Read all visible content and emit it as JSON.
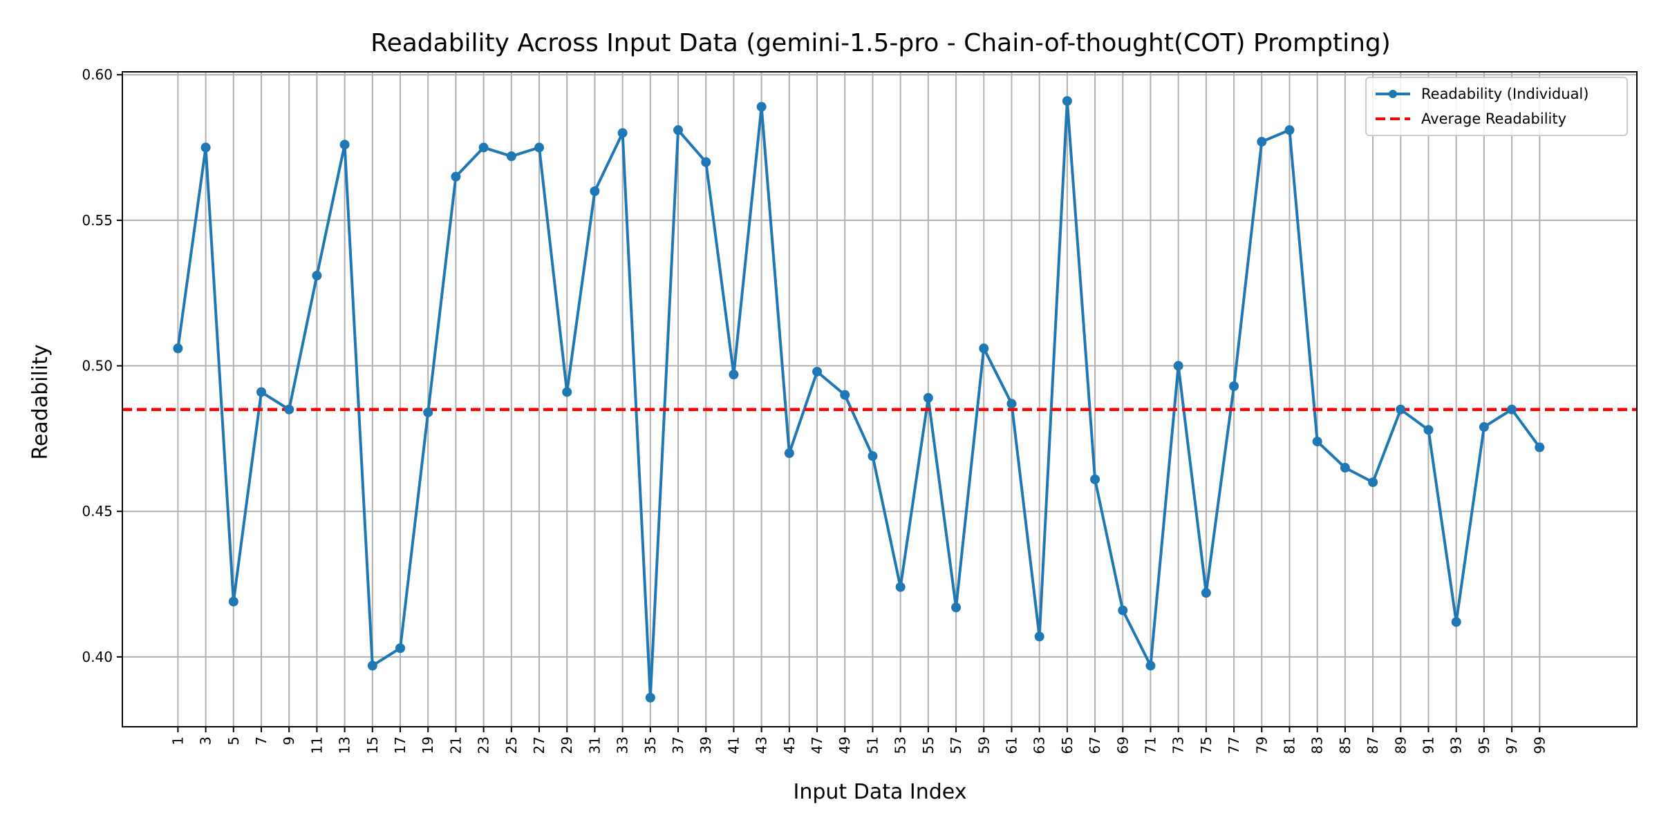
{
  "chart_data": {
    "type": "line",
    "title": "Readability Across Input Data (gemini-1.5-pro - Chain-of-thought(COT) Prompting)",
    "xlabel": "Input Data Index",
    "ylabel": "Readability",
    "xlim": [
      -3,
      106
    ],
    "ylim": [
      0.376,
      0.601
    ],
    "x_ticks": [
      1,
      3,
      5,
      7,
      9,
      11,
      13,
      15,
      17,
      19,
      21,
      23,
      25,
      27,
      29,
      31,
      33,
      35,
      37,
      39,
      41,
      43,
      45,
      47,
      49,
      51,
      53,
      55,
      57,
      59,
      61,
      63,
      65,
      67,
      69,
      71,
      73,
      75,
      77,
      79,
      81,
      83,
      85,
      87,
      89,
      91,
      93,
      95,
      97,
      99
    ],
    "y_ticks": [
      0.4,
      0.45,
      0.5,
      0.55,
      0.6
    ],
    "y_tick_labels": [
      "0.40",
      "0.45",
      "0.50",
      "0.55",
      "0.60"
    ],
    "grid": true,
    "legend_position": "top-right",
    "series": [
      {
        "name": "Readability (Individual)",
        "style": "line-with-markers",
        "color": "#1f77b4",
        "x": [
          1,
          3,
          5,
          7,
          9,
          11,
          13,
          15,
          17,
          19,
          21,
          23,
          25,
          27,
          29,
          31,
          33,
          35,
          37,
          39,
          41,
          43,
          45,
          47,
          49,
          51,
          53,
          55,
          57,
          59,
          61,
          63,
          65,
          67,
          69,
          71,
          73,
          75,
          77,
          79,
          81,
          83,
          85,
          87,
          89,
          91,
          93,
          95,
          97,
          99
        ],
        "y": [
          0.506,
          0.575,
          0.419,
          0.491,
          0.485,
          0.531,
          0.576,
          0.397,
          0.403,
          0.484,
          0.565,
          0.575,
          0.572,
          0.575,
          0.491,
          0.56,
          0.58,
          0.386,
          0.581,
          0.57,
          0.497,
          0.589,
          0.47,
          0.498,
          0.49,
          0.469,
          0.424,
          0.489,
          0.417,
          0.506,
          0.487,
          0.407,
          0.591,
          0.461,
          0.416,
          0.397,
          0.5,
          0.422,
          0.493,
          0.577,
          0.581,
          0.474,
          0.465,
          0.46,
          0.485,
          0.478,
          0.412,
          0.479,
          0.485,
          0.472
        ]
      },
      {
        "name": "Average Readability",
        "style": "dashed-horizontal",
        "color": "#ff0000",
        "y": 0.485
      }
    ]
  }
}
